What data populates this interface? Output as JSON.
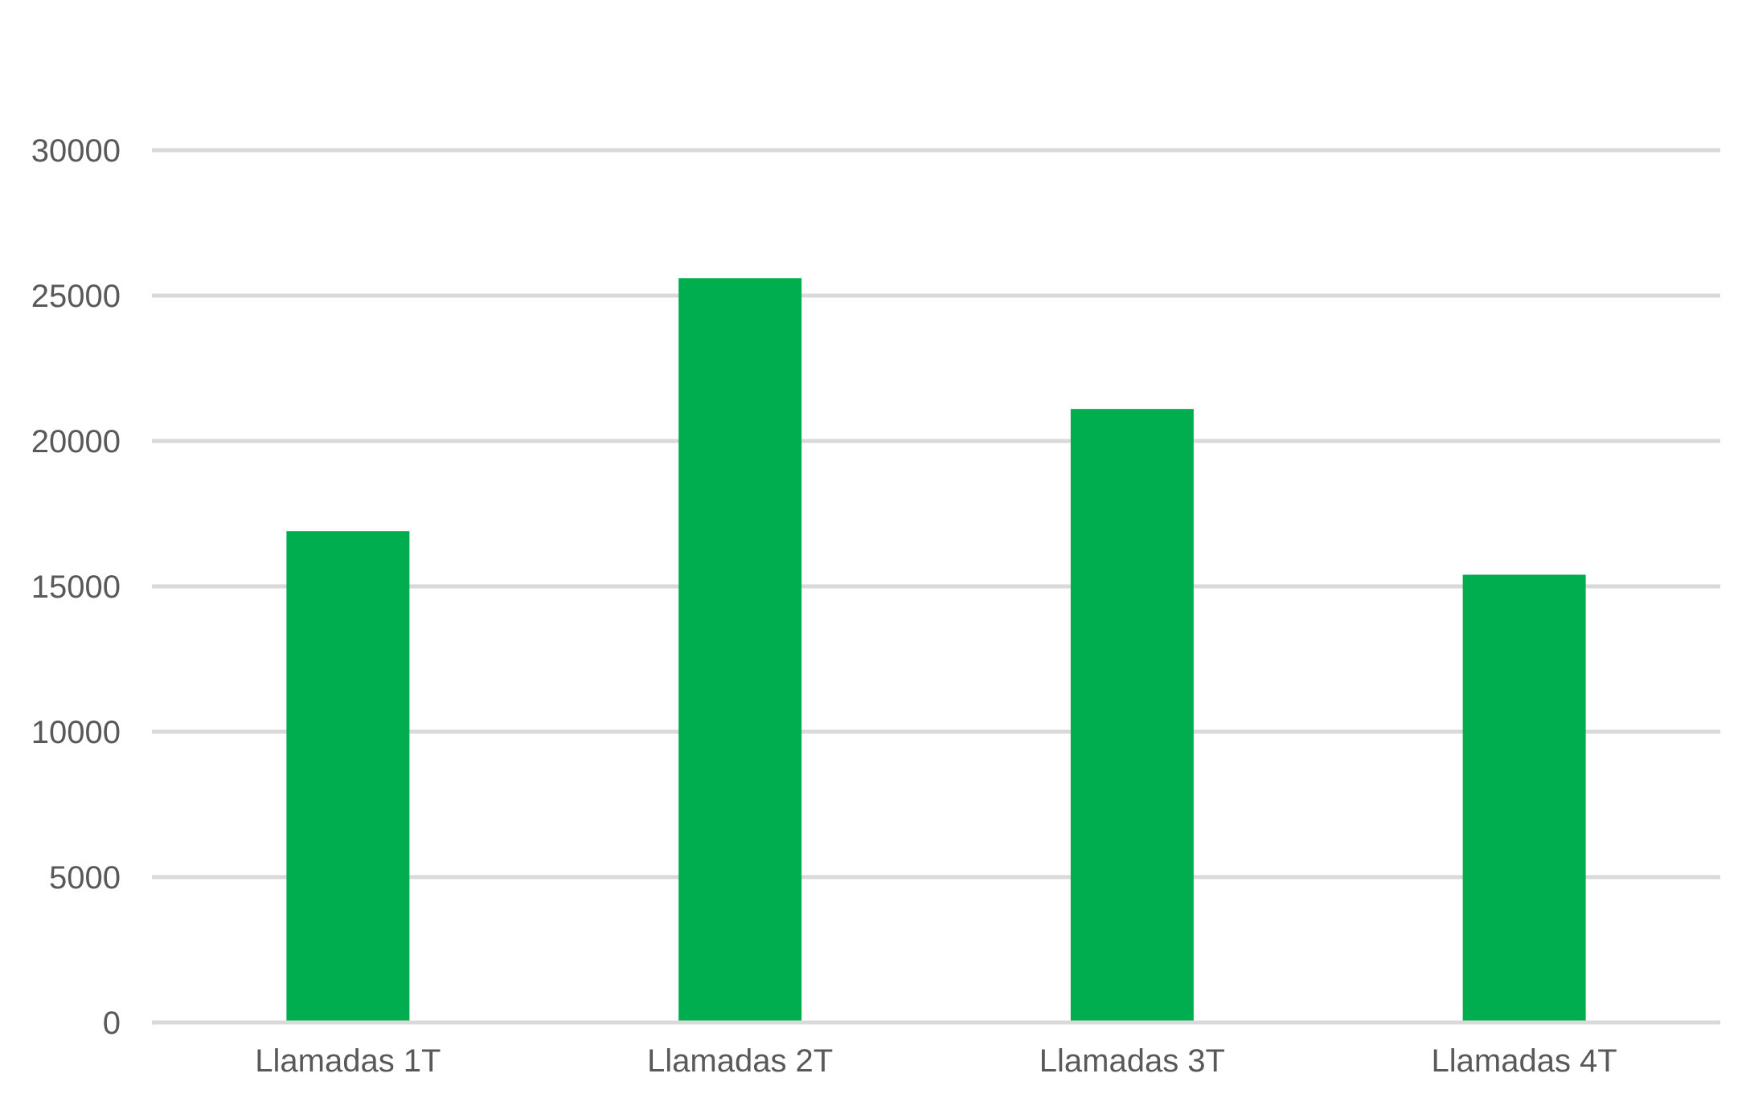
{
  "chart_data": {
    "type": "bar",
    "categories": [
      "Llamadas 1T",
      "Llamadas 2T",
      "Llamadas 3T",
      "Llamadas 4T"
    ],
    "values": [
      16900,
      25600,
      21100,
      15400
    ],
    "title": "",
    "xlabel": "",
    "ylabel": "",
    "ylim": [
      0,
      30000
    ],
    "yticks": [
      "0",
      "5000",
      "10000",
      "15000",
      "20000",
      "25000",
      "30000"
    ],
    "grid": true,
    "legend": "none",
    "bar_color": "#00ae50",
    "grid_color": "#d9d9d9",
    "text_color": "#595959"
  }
}
